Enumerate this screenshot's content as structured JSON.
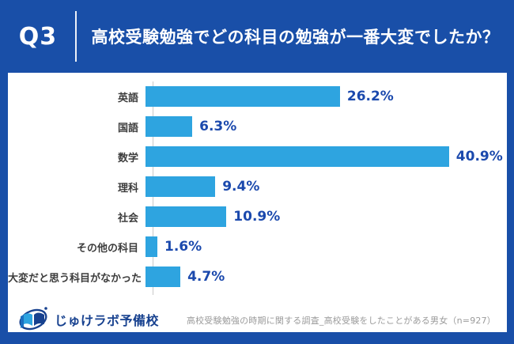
{
  "header": {
    "question_number": "Q3",
    "title": "高校受験勉強でどの科目の勉強が一番大変でしたか？"
  },
  "chart_data": {
    "type": "bar",
    "orientation": "horizontal",
    "title": "高校受験勉強でどの科目の勉強が一番大変でしたか？",
    "categories": [
      "英語",
      "国語",
      "数学",
      "理科",
      "社会",
      "その他の科目",
      "大変だと思う科目がなかった"
    ],
    "values": [
      26.2,
      6.3,
      40.9,
      9.4,
      10.9,
      1.6,
      4.7
    ],
    "value_labels": [
      "26.2%",
      "6.3%",
      "40.9%",
      "9.4%",
      "10.9%",
      "1.6%",
      "4.7%"
    ],
    "xlim": [
      0,
      48.7
    ],
    "grid": false,
    "legend": "none",
    "bar_color": "#2ea4e0",
    "value_label_color": "#1b49ad"
  },
  "footer": {
    "logo_text": "じゅけラボ予備校",
    "logo_icon": "open-book-orbit-icon",
    "note": "高校受験勉強の時期に関する調査_高校受験をしたことがある男女（n=927）"
  },
  "colors": {
    "background": "#194fa8",
    "panel": "#ffffff",
    "bar": "#2ea4e0",
    "value_text": "#1b49ad",
    "category_text": "#3d3d3d",
    "note_text": "#9b9b9b",
    "axis_line": "#c9c9c9"
  }
}
